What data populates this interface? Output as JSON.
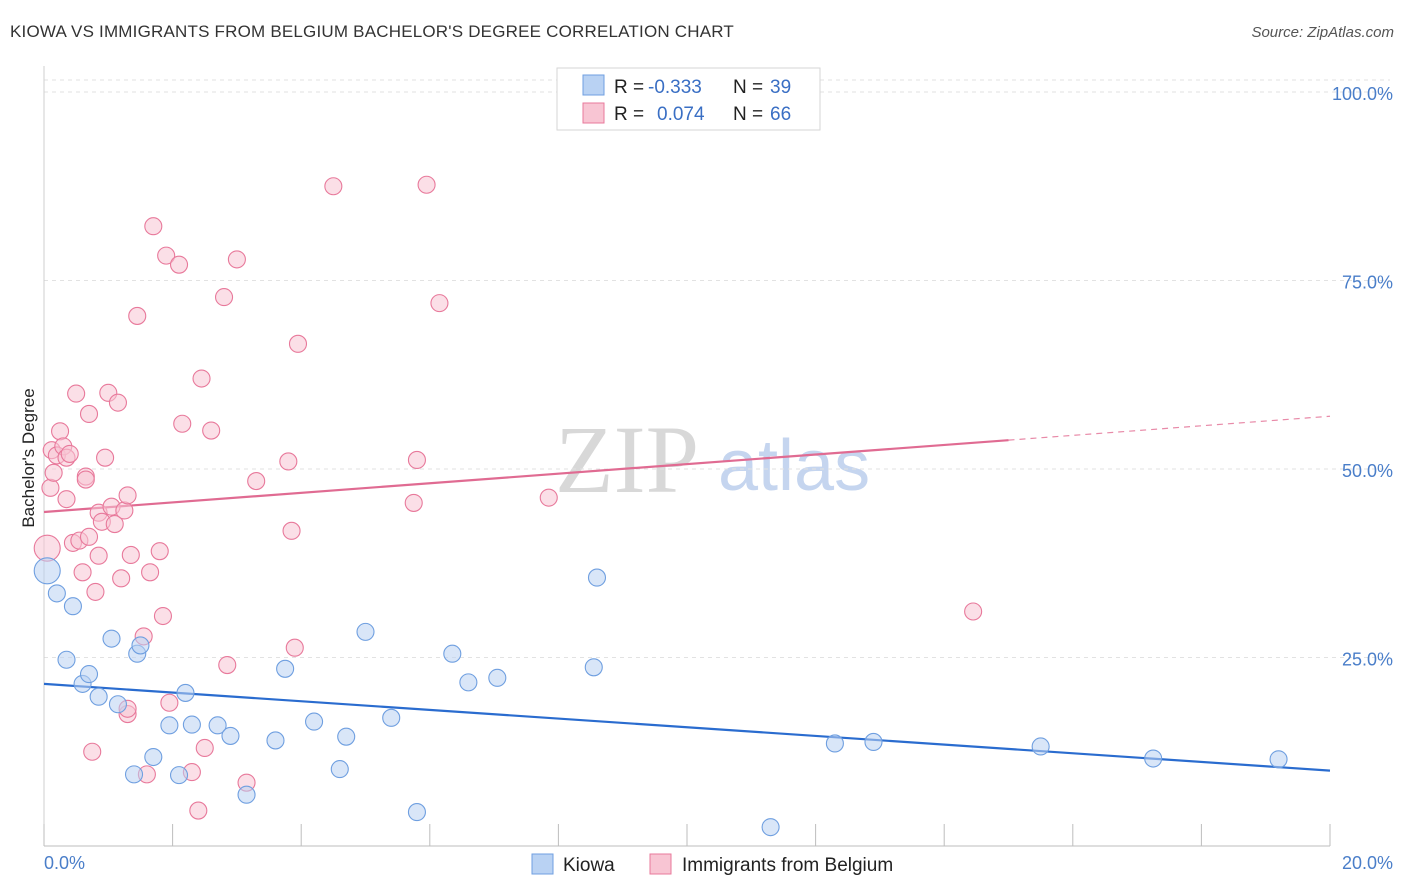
{
  "header": {
    "title": "KIOWA VS IMMIGRANTS FROM BELGIUM BACHELOR'S DEGREE CORRELATION CHART",
    "source": "Source: ZipAtlas.com"
  },
  "watermark": {
    "part1": "ZIP",
    "part2": "atlas"
  },
  "legend": {
    "rows": [
      {
        "r_label": "R =",
        "r_value": "-0.333",
        "n_label": "N =",
        "n_value": "39",
        "color": "#a9c8f0"
      },
      {
        "r_label": "R =",
        "r_value": "0.074",
        "n_label": "N =",
        "n_value": "66",
        "color": "#f6b6c8"
      }
    ]
  },
  "chart_data": {
    "type": "scatter",
    "title": "KIOWA VS IMMIGRANTS FROM BELGIUM BACHELOR'S DEGREE CORRELATION CHART",
    "xlabel": "",
    "ylabel": "Bachelor's Degree",
    "xlim": [
      0,
      20
    ],
    "ylim": [
      0,
      100
    ],
    "x_tick_labels": [
      "0.0%",
      "20.0%"
    ],
    "y_tick_labels": [
      "25.0%",
      "50.0%",
      "75.0%",
      "100.0%"
    ],
    "y_ticks": [
      25,
      50,
      75,
      100
    ],
    "grid": true,
    "legend_position": "top-center",
    "series": [
      {
        "name": "Kiowa",
        "color": "#6f9fe0",
        "fill": "#b9d2f3",
        "trend": {
          "x": [
            0,
            20
          ],
          "y": [
            21.5,
            10.0
          ],
          "solid_to": 20
        },
        "points": [
          [
            0.05,
            36.5
          ],
          [
            0.2,
            33.5
          ],
          [
            0.35,
            24.7
          ],
          [
            0.45,
            31.8
          ],
          [
            0.6,
            21.5
          ],
          [
            0.7,
            22.8
          ],
          [
            0.85,
            19.8
          ],
          [
            1.05,
            27.5
          ],
          [
            1.15,
            18.8
          ],
          [
            1.45,
            25.5
          ],
          [
            1.5,
            26.6
          ],
          [
            1.4,
            9.5
          ],
          [
            1.7,
            11.8
          ],
          [
            1.95,
            16.0
          ],
          [
            2.1,
            9.4
          ],
          [
            2.2,
            20.3
          ],
          [
            2.3,
            16.1
          ],
          [
            2.7,
            16.0
          ],
          [
            2.9,
            14.6
          ],
          [
            3.15,
            6.8
          ],
          [
            3.6,
            14.0
          ],
          [
            3.75,
            23.5
          ],
          [
            4.2,
            16.5
          ],
          [
            4.6,
            10.2
          ],
          [
            4.7,
            14.5
          ],
          [
            5.0,
            28.4
          ],
          [
            5.4,
            17.0
          ],
          [
            5.8,
            4.5
          ],
          [
            6.35,
            25.5
          ],
          [
            6.6,
            21.7
          ],
          [
            7.05,
            22.3
          ],
          [
            8.55,
            23.7
          ],
          [
            8.6,
            35.6
          ],
          [
            11.3,
            2.5
          ],
          [
            12.3,
            13.6
          ],
          [
            12.9,
            13.8
          ],
          [
            15.5,
            13.2
          ],
          [
            17.25,
            11.6
          ],
          [
            19.2,
            11.5
          ]
        ]
      },
      {
        "name": "Immigrants from Belgium",
        "color": "#e8799b",
        "fill": "#f8c5d3",
        "trend": {
          "x": [
            0,
            20
          ],
          "y": [
            44.3,
            57.0
          ],
          "solid_to": 15
        },
        "points": [
          [
            0.05,
            39.5
          ],
          [
            0.1,
            47.5
          ],
          [
            0.12,
            52.5
          ],
          [
            0.15,
            49.5
          ],
          [
            0.2,
            51.8
          ],
          [
            0.25,
            55.0
          ],
          [
            0.3,
            53.0
          ],
          [
            0.35,
            51.5
          ],
          [
            0.35,
            46.0
          ],
          [
            0.4,
            52.0
          ],
          [
            0.45,
            40.2
          ],
          [
            0.5,
            60.0
          ],
          [
            0.55,
            40.5
          ],
          [
            0.6,
            36.3
          ],
          [
            0.65,
            49.0
          ],
          [
            0.65,
            48.6
          ],
          [
            0.7,
            41.0
          ],
          [
            0.7,
            57.3
          ],
          [
            0.75,
            12.5
          ],
          [
            0.8,
            33.7
          ],
          [
            0.85,
            38.5
          ],
          [
            0.85,
            44.2
          ],
          [
            0.9,
            43.0
          ],
          [
            0.95,
            51.5
          ],
          [
            1.0,
            60.1
          ],
          [
            1.05,
            45.0
          ],
          [
            1.1,
            42.7
          ],
          [
            1.15,
            58.8
          ],
          [
            1.2,
            35.5
          ],
          [
            1.25,
            44.5
          ],
          [
            1.3,
            17.5
          ],
          [
            1.3,
            18.2
          ],
          [
            1.3,
            46.5
          ],
          [
            1.35,
            38.6
          ],
          [
            1.45,
            70.3
          ],
          [
            1.55,
            27.8
          ],
          [
            1.6,
            9.5
          ],
          [
            1.65,
            36.3
          ],
          [
            1.7,
            82.2
          ],
          [
            1.8,
            39.1
          ],
          [
            1.85,
            30.5
          ],
          [
            1.9,
            78.3
          ],
          [
            1.95,
            19.0
          ],
          [
            2.1,
            77.1
          ],
          [
            2.15,
            56.0
          ],
          [
            2.3,
            9.8
          ],
          [
            2.4,
            4.7
          ],
          [
            2.45,
            62.0
          ],
          [
            2.5,
            13.0
          ],
          [
            2.6,
            55.1
          ],
          [
            2.8,
            72.8
          ],
          [
            2.85,
            24.0
          ],
          [
            3.0,
            77.8
          ],
          [
            3.15,
            8.4
          ],
          [
            3.3,
            48.4
          ],
          [
            3.8,
            51.0
          ],
          [
            3.85,
            41.8
          ],
          [
            3.9,
            26.3
          ],
          [
            3.95,
            66.6
          ],
          [
            4.5,
            87.5
          ],
          [
            5.75,
            45.5
          ],
          [
            5.8,
            51.2
          ],
          [
            5.95,
            87.7
          ],
          [
            6.15,
            72.0
          ],
          [
            7.85,
            46.2
          ],
          [
            14.45,
            31.1
          ]
        ]
      }
    ]
  },
  "bottom_legend": {
    "items": [
      {
        "label": "Kiowa"
      },
      {
        "label": "Immigrants from Belgium"
      }
    ]
  }
}
